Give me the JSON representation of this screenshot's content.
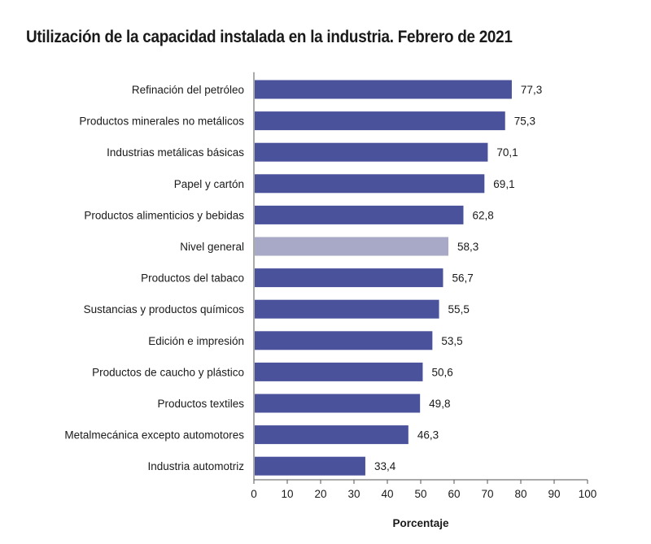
{
  "chart_data": {
    "type": "bar",
    "orientation": "horizontal",
    "title": "Utilización de la capacidad instalada en la industria. Febrero de 2021",
    "xlabel": "Porcentaje",
    "ylabel": "",
    "xlim": [
      0,
      100
    ],
    "xticks": [
      "0",
      "10",
      "20",
      "30",
      "40",
      "50",
      "60",
      "70",
      "80",
      "90",
      "100"
    ],
    "grid": false,
    "categories": [
      "Refinación del petróleo",
      "Productos minerales no metálicos",
      "Industrias metálicas básicas",
      "Papel y cartón",
      "Productos alimenticios y bebidas",
      "Nivel general",
      "Productos del tabaco",
      "Sustancias y productos químicos",
      "Edición e impresión",
      "Productos de caucho y plástico",
      "Productos textiles",
      "Metalmecánica excepto automotores",
      "Industria automotriz"
    ],
    "values": [
      77.3,
      75.3,
      70.1,
      69.1,
      62.8,
      58.3,
      56.7,
      55.5,
      53.5,
      50.6,
      49.8,
      46.3,
      33.4
    ],
    "value_labels": [
      "77,3",
      "75,3",
      "70,1",
      "69,1",
      "62,8",
      "58,3",
      "56,7",
      "55,5",
      "53,5",
      "50,6",
      "49,8",
      "46,3",
      "33,4"
    ],
    "highlight_category": "Nivel general",
    "colors": {
      "bar": "#4a529c",
      "highlight": "#a7a9c6",
      "axis": "#555555"
    }
  }
}
